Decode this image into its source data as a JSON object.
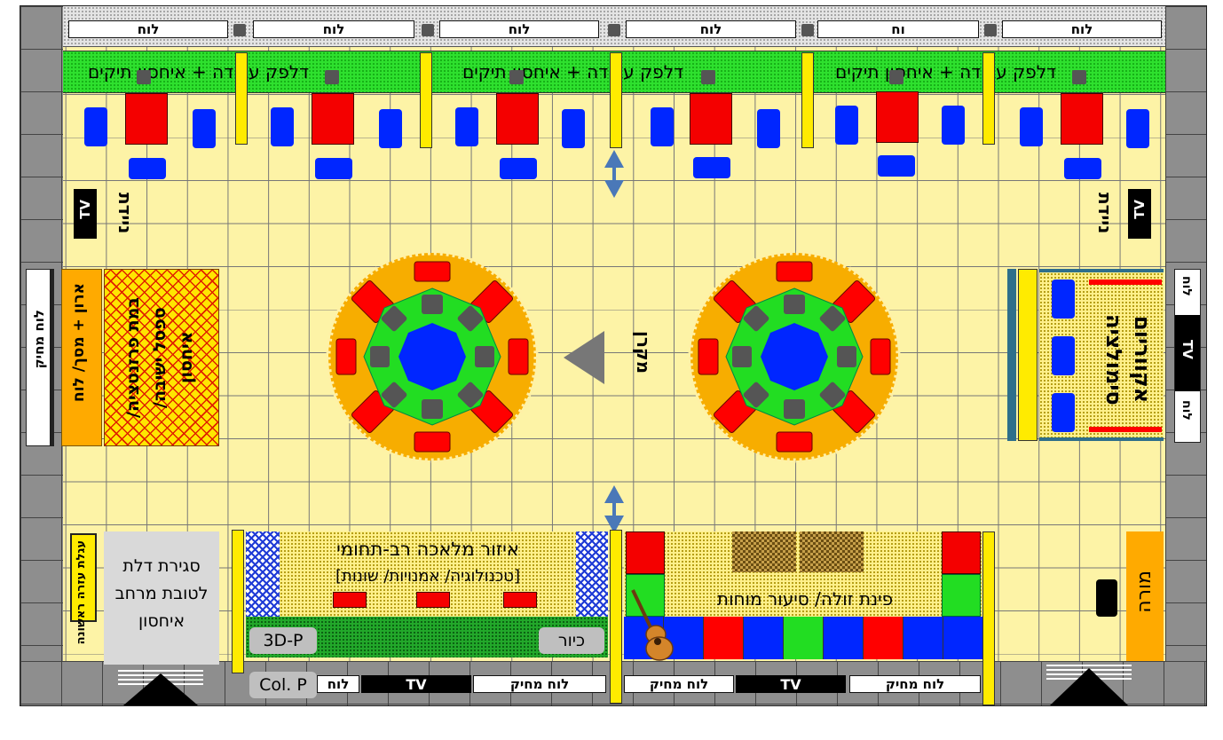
{
  "colors": {
    "floor": "#fdf3a6",
    "wall": "#8e8e8e",
    "yellow": "#ffeb00",
    "red": "#f40000",
    "blue": "#0026ff",
    "green": "#2ee02e",
    "orange": "#ffaa00"
  },
  "top_boards": [
    "לוח",
    "לוח",
    "לוח",
    "לוח",
    "וח",
    "לוח"
  ],
  "top_counters": [
    "דלפק עבודה + איחסון תיקים",
    "דלפק עבודה + איחסון תיקים",
    "דלפק עבודה + איחסון תיקים"
  ],
  "left": {
    "tv": "TV",
    "mobile": "ניידת",
    "whiteboard": "לוח מחיק",
    "cabinet": "ארון + מסך/ לוח",
    "stage": "במת פרזנטציה/ ספסל ישיבה/ איחסון"
  },
  "right": {
    "tv": "TV",
    "mobile": "ניידת",
    "aquarium": "אקווריום סימולציה",
    "wall_labels": [
      "לוח",
      "TV",
      "לוח"
    ]
  },
  "center": {
    "projector": "מקרן"
  },
  "bottom": {
    "door_left": "סגירת דלת לטובת מרחב איחסון",
    "first_aid": "עגלת עזרה ראשונה",
    "craft_title": "איזור מלאכה רב-תחומי",
    "craft_subtitle": "[טכנולוגיה/ אמנויות/ שונות]",
    "print_3d": "3D-P",
    "sink": "כיור",
    "color_printer": "Col. P",
    "relax": "פינת זולה/ סיעור מוחות",
    "teacher": "מורה",
    "boards": [
      "לוח",
      "TV",
      "לוח מחיק",
      "לוח מחיק",
      "TV",
      "לוח מחיק"
    ]
  },
  "icons": [
    "guitar-icon",
    "arrow-up-icon",
    "arrow-down-icon",
    "projector-triangle-icon",
    "stairs-icon"
  ]
}
